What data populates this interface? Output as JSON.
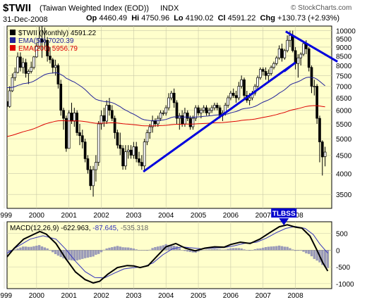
{
  "header": {
    "symbol": "$TWII",
    "name": "(Taiwan Weighted Index (EOD))",
    "exchange": "INDX",
    "watermark": "© StockCharts.com",
    "date": "31-Dec-2008",
    "open_label": "Op",
    "open": "4460.49",
    "high_label": "Hi",
    "high": "4750.96",
    "low_label": "Lo",
    "low": "4190.02",
    "close_label": "Cl",
    "close": "4591.22",
    "change_label": "Chg",
    "change": "+130.73 (+2.93%)"
  },
  "colors": {
    "panel_bg": "#ffffcc",
    "up_candle": "#ffffff",
    "down_candle": "#000000",
    "ema50": "#22229a",
    "ema200": "#dd0000",
    "trendline": "#0000dd",
    "macd_line": "#000000",
    "signal_line": "#3333bb",
    "histogram": "#9a9ab8",
    "tlbss_bg": "#0000cc"
  },
  "chart_data": [
    {
      "type": "candlestick",
      "title": "$TWII (Monthly) 4591.22",
      "legend": [
        {
          "label": "$TWII (Monthly) 4591.22",
          "color": "#000000"
        },
        {
          "label": "EMA(50) 7020.39",
          "color": "#22229a"
        },
        {
          "label": "EMA(200) 5956.79",
          "color": "#dd0000"
        }
      ],
      "scale": "log",
      "ylim": [
        3200,
        10300
      ],
      "yticks": [
        3500,
        4000,
        4500,
        5000,
        5500,
        6000,
        6500,
        7000,
        7500,
        8000,
        8500,
        9000,
        9500,
        10000
      ],
      "xlim": [
        1999.0,
        2009.1
      ],
      "xticks": [
        1999,
        2000,
        2001,
        2002,
        2003,
        2004,
        2005,
        2006,
        2007,
        2008
      ],
      "candles_monthly_from_1999_01": [
        [
          6150,
          6600,
          5900,
          6350
        ],
        [
          6350,
          6600,
          6000,
          6150
        ],
        [
          6150,
          7000,
          6100,
          6800
        ],
        [
          6800,
          7600,
          6750,
          7400
        ],
        [
          7400,
          7900,
          7250,
          7650
        ],
        [
          7650,
          8700,
          7600,
          8450
        ],
        [
          8450,
          8700,
          7700,
          7900
        ],
        [
          7900,
          8400,
          7600,
          8150
        ],
        [
          8150,
          8350,
          7400,
          7600
        ],
        [
          7600,
          7800,
          7100,
          7700
        ],
        [
          7700,
          8200,
          7600,
          7900
        ],
        [
          7900,
          8500,
          7800,
          8450
        ],
        [
          8450,
          9250,
          8400,
          9050
        ],
        [
          9050,
          10250,
          8900,
          9500
        ],
        [
          9500,
          10300,
          8400,
          9300
        ],
        [
          9300,
          10200,
          8900,
          9400
        ],
        [
          9400,
          9600,
          8200,
          8500
        ],
        [
          8500,
          9000,
          8100,
          8300
        ],
        [
          8300,
          8400,
          7600,
          7900
        ],
        [
          7900,
          8300,
          7500,
          8000
        ],
        [
          8000,
          8100,
          6900,
          7100
        ],
        [
          7100,
          7300,
          5800,
          6000
        ],
        [
          6000,
          6100,
          5300,
          5700
        ],
        [
          5700,
          5800,
          4600,
          4700
        ],
        [
          4700,
          6000,
          4700,
          5900
        ],
        [
          5900,
          6300,
          5500,
          5600
        ],
        [
          5600,
          6100,
          5400,
          5900
        ],
        [
          5900,
          6000,
          5100,
          5200
        ],
        [
          5200,
          5500,
          4800,
          5100
        ],
        [
          5100,
          5300,
          4700,
          4900
        ],
        [
          4900,
          5000,
          4300,
          4400
        ],
        [
          4400,
          4500,
          4000,
          4100
        ],
        [
          4100,
          4200,
          3600,
          3700
        ],
        [
          3700,
          4200,
          3450,
          4100
        ],
        [
          4100,
          4500,
          3800,
          4300
        ],
        [
          4300,
          5600,
          4200,
          5500
        ],
        [
          5500,
          6000,
          5300,
          5800
        ],
        [
          5800,
          6100,
          5400,
          5600
        ],
        [
          5600,
          6400,
          5500,
          6200
        ],
        [
          6200,
          6500,
          5800,
          6000
        ],
        [
          6000,
          6200,
          5600,
          5700
        ],
        [
          5700,
          5800,
          5000,
          5200
        ],
        [
          5200,
          5300,
          4700,
          4800
        ],
        [
          4800,
          5200,
          4500,
          4700
        ],
        [
          4700,
          4800,
          4100,
          4200
        ],
        [
          4200,
          4800,
          4100,
          4600
        ],
        [
          4600,
          4800,
          4400,
          4650
        ],
        [
          4650,
          4800,
          4400,
          4500
        ],
        [
          4500,
          4900,
          4400,
          4750
        ],
        [
          4750,
          4900,
          4300,
          4400
        ],
        [
          4400,
          4600,
          4200,
          4300
        ],
        [
          4300,
          4500,
          4100,
          4200
        ],
        [
          4200,
          5000,
          4100,
          4900
        ],
        [
          4900,
          5300,
          4800,
          5200
        ],
        [
          5200,
          5500,
          5000,
          5400
        ],
        [
          5400,
          5800,
          5200,
          5600
        ],
        [
          5600,
          5700,
          5400,
          5500
        ],
        [
          5500,
          5800,
          5400,
          5700
        ],
        [
          5700,
          6000,
          5600,
          5900
        ],
        [
          5900,
          6000,
          5800,
          5900
        ],
        [
          5900,
          6200,
          5800,
          6100
        ],
        [
          6100,
          6700,
          6000,
          6500
        ],
        [
          6500,
          6800,
          6400,
          6700
        ],
        [
          6700,
          6900,
          6100,
          6300
        ],
        [
          6300,
          6400,
          5500,
          5700
        ],
        [
          5700,
          5900,
          5300,
          5800
        ],
        [
          5800,
          6000,
          5400,
          5500
        ],
        [
          5500,
          6100,
          5400,
          5900
        ],
        [
          5900,
          6000,
          5600,
          5700
        ],
        [
          5700,
          5800,
          5300,
          5400
        ],
        [
          5400,
          5800,
          5300,
          5700
        ],
        [
          5700,
          6200,
          5600,
          6100
        ],
        [
          6100,
          6200,
          5800,
          5900
        ],
        [
          5900,
          6100,
          5700,
          6000
        ],
        [
          6000,
          6200,
          5900,
          6100
        ],
        [
          6100,
          6200,
          5800,
          5900
        ],
        [
          5900,
          6100,
          5800,
          6000
        ],
        [
          6000,
          6200,
          5900,
          6100
        ],
        [
          6100,
          6300,
          6000,
          6200
        ],
        [
          6200,
          6300,
          6000,
          6100
        ],
        [
          6100,
          6200,
          5700,
          5800
        ],
        [
          5800,
          6000,
          5600,
          5900
        ],
        [
          5900,
          6300,
          5800,
          6200
        ],
        [
          6200,
          6600,
          6100,
          6500
        ],
        [
          6500,
          6800,
          6400,
          6700
        ],
        [
          6700,
          6900,
          6500,
          6600
        ],
        [
          6600,
          6800,
          6300,
          6500
        ],
        [
          6500,
          7200,
          6400,
          7000
        ],
        [
          7000,
          7500,
          6900,
          7300
        ],
        [
          7300,
          7400,
          6400,
          6600
        ],
        [
          6600,
          6800,
          6300,
          6400
        ],
        [
          6400,
          6700,
          6200,
          6500
        ],
        [
          6500,
          6800,
          6400,
          6700
        ],
        [
          6700,
          7100,
          6600,
          7000
        ],
        [
          7000,
          7500,
          6900,
          7400
        ],
        [
          7400,
          7900,
          7300,
          7800
        ],
        [
          7800,
          7900,
          7500,
          7700
        ],
        [
          7700,
          7900,
          7300,
          7500
        ],
        [
          7500,
          7800,
          7200,
          7600
        ],
        [
          7600,
          8000,
          7500,
          7900
        ],
        [
          7900,
          8200,
          7800,
          8100
        ],
        [
          8100,
          8500,
          8000,
          8400
        ],
        [
          8400,
          9100,
          8300,
          8900
        ],
        [
          8900,
          9200,
          8200,
          8400
        ],
        [
          8400,
          8900,
          8300,
          8800
        ],
        [
          8800,
          9700,
          8700,
          9400
        ],
        [
          9400,
          10000,
          9000,
          9700
        ],
        [
          9700,
          10000,
          8700,
          8800
        ],
        [
          8800,
          9000,
          7800,
          8100
        ],
        [
          8100,
          8600,
          7400,
          8400
        ],
        [
          8400,
          8700,
          8000,
          8600
        ],
        [
          8600,
          9300,
          8500,
          9200
        ],
        [
          9200,
          9400,
          8600,
          8900
        ],
        [
          8900,
          9000,
          7700,
          7900
        ],
        [
          7900,
          8000,
          6700,
          7000
        ],
        [
          7000,
          7300,
          6600,
          7000
        ],
        [
          7000,
          7100,
          5500,
          5700
        ],
        [
          5700,
          5800,
          4300,
          4900
        ],
        [
          4900,
          4950,
          3950,
          4450
        ],
        [
          4460,
          4750,
          4190,
          4591
        ]
      ],
      "annotations": [
        "TLBSS"
      ]
    },
    {
      "type": "line",
      "title": "MACD(12,26,9) -622.963, -87.645, -535.318",
      "series": [
        {
          "name": "MACD(12,26,9) -622.963",
          "color": "#000000"
        },
        {
          "name": "-87.645",
          "color": "#3333bb"
        },
        {
          "name": "-535.318",
          "color": "#9a9ab8"
        }
      ],
      "ylim": [
        -1150,
        850
      ],
      "yticks": [
        -1000,
        -500,
        0,
        500
      ],
      "xticks": [
        1999,
        2000,
        2001,
        2002,
        2003,
        2004,
        2005,
        2006,
        2007,
        2008
      ],
      "macd_line": [
        [
          1999.0,
          -300
        ],
        [
          1999.3,
          50
        ],
        [
          1999.6,
          330
        ],
        [
          1999.9,
          470
        ],
        [
          2000.1,
          560
        ],
        [
          2000.3,
          480
        ],
        [
          2000.6,
          200
        ],
        [
          2000.9,
          -250
        ],
        [
          2001.2,
          -650
        ],
        [
          2001.5,
          -880
        ],
        [
          2001.75,
          -980
        ],
        [
          2001.95,
          -930
        ],
        [
          2002.2,
          -720
        ],
        [
          2002.5,
          -520
        ],
        [
          2002.8,
          -460
        ],
        [
          2003.0,
          -470
        ],
        [
          2003.2,
          -520
        ],
        [
          2003.45,
          -460
        ],
        [
          2003.7,
          -200
        ],
        [
          2004.0,
          100
        ],
        [
          2004.3,
          200
        ],
        [
          2004.6,
          60
        ],
        [
          2004.9,
          -20
        ],
        [
          2005.2,
          60
        ],
        [
          2005.5,
          100
        ],
        [
          2005.8,
          90
        ],
        [
          2006.0,
          170
        ],
        [
          2006.3,
          240
        ],
        [
          2006.6,
          200
        ],
        [
          2006.9,
          330
        ],
        [
          2007.2,
          520
        ],
        [
          2007.5,
          700
        ],
        [
          2007.75,
          760
        ],
        [
          2008.0,
          690
        ],
        [
          2008.2,
          660
        ],
        [
          2008.45,
          420
        ],
        [
          2008.65,
          30
        ],
        [
          2008.85,
          -380
        ],
        [
          2009.0,
          -623
        ]
      ],
      "signal_line": [
        [
          1999.0,
          -150
        ],
        [
          1999.4,
          100
        ],
        [
          1999.8,
          330
        ],
        [
          2000.2,
          430
        ],
        [
          2000.6,
          330
        ],
        [
          2000.9,
          30
        ],
        [
          2001.2,
          -330
        ],
        [
          2001.5,
          -640
        ],
        [
          2001.8,
          -820
        ],
        [
          2002.1,
          -830
        ],
        [
          2002.4,
          -690
        ],
        [
          2002.7,
          -560
        ],
        [
          2003.0,
          -520
        ],
        [
          2003.3,
          -500
        ],
        [
          2003.6,
          -380
        ],
        [
          2003.9,
          -140
        ],
        [
          2004.2,
          40
        ],
        [
          2004.5,
          100
        ],
        [
          2004.8,
          70
        ],
        [
          2005.1,
          40
        ],
        [
          2005.4,
          60
        ],
        [
          2005.8,
          80
        ],
        [
          2006.1,
          130
        ],
        [
          2006.4,
          200
        ],
        [
          2006.8,
          240
        ],
        [
          2007.1,
          360
        ],
        [
          2007.4,
          520
        ],
        [
          2007.7,
          650
        ],
        [
          2008.0,
          710
        ],
        [
          2008.3,
          650
        ],
        [
          2008.55,
          470
        ],
        [
          2008.75,
          190
        ],
        [
          2009.0,
          -88
        ]
      ]
    }
  ],
  "tlbss_label": "TLBSS"
}
